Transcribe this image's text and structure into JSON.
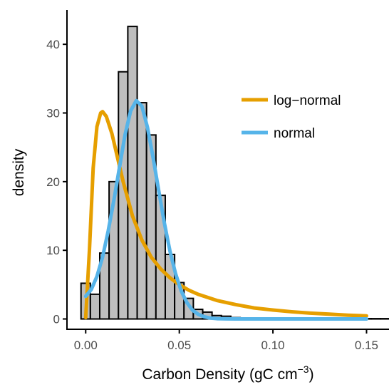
{
  "chart_data": {
    "type": "histogram",
    "xlabel": "Carbon Density (gC cm",
    "xlabel_superscript": "−3",
    "xlabel_suffix": ")",
    "ylabel": "density",
    "xlim": [
      -0.01,
      0.162
    ],
    "ylim": [
      -1.5,
      45
    ],
    "x_ticks": [
      0.0,
      0.05,
      0.1,
      0.15
    ],
    "x_tick_labels": [
      "0.00",
      "0.05",
      "0.10",
      "0.15"
    ],
    "y_ticks": [
      0,
      10,
      20,
      30,
      40
    ],
    "y_tick_labels": [
      "0",
      "10",
      "20",
      "30",
      "40"
    ],
    "grid": false,
    "legend_position": "top-right",
    "histogram": {
      "bin_width": 0.005,
      "bin_starts": [
        -0.0025,
        0.0025,
        0.0075,
        0.0125,
        0.0175,
        0.0225,
        0.0275,
        0.0325,
        0.0375,
        0.0425,
        0.0475,
        0.0525,
        0.0575,
        0.0625,
        0.0675,
        0.0725,
        0.0775,
        0.0825,
        0.0875,
        0.0925,
        0.0975,
        0.1025,
        0.1075,
        0.1125,
        0.1175,
        0.1225,
        0.1275,
        0.1325,
        0.1375,
        0.1425,
        0.1475,
        0.1525,
        0.1575
      ],
      "densities": [
        5.2,
        3.6,
        9.6,
        20.0,
        36.0,
        42.6,
        31.5,
        26.8,
        18.0,
        9.4,
        5.3,
        3.0,
        1.4,
        1.0,
        0.5,
        0.4,
        0.2,
        0.15,
        0.1,
        0.1,
        0.05,
        0.05,
        0.05,
        0.05,
        0.05,
        0.05,
        0.05,
        0.05,
        0.05,
        0.05,
        0.05,
        0.05,
        0.05
      ],
      "fill": "#bebebe",
      "stroke": "#000000"
    },
    "series": [
      {
        "name": "log−normal",
        "color": "#E69F00",
        "x": [
          0.0,
          0.002,
          0.004,
          0.006,
          0.008,
          0.009,
          0.011,
          0.014,
          0.017,
          0.02,
          0.025,
          0.03,
          0.035,
          0.04,
          0.045,
          0.05,
          0.055,
          0.06,
          0.07,
          0.08,
          0.09,
          0.1,
          0.11,
          0.12,
          0.13,
          0.14,
          0.15
        ],
        "y": [
          0.2,
          10.0,
          22.0,
          28.0,
          30.0,
          30.2,
          29.5,
          27.0,
          23.5,
          20.0,
          15.0,
          11.5,
          9.0,
          7.3,
          6.0,
          5.0,
          4.2,
          3.6,
          2.7,
          2.1,
          1.6,
          1.3,
          1.05,
          0.85,
          0.7,
          0.55,
          0.45
        ]
      },
      {
        "name": "normal",
        "color": "#56B4E9",
        "x": [
          0.0,
          0.003,
          0.006,
          0.009,
          0.012,
          0.015,
          0.018,
          0.021,
          0.024,
          0.027,
          0.03,
          0.033,
          0.036,
          0.039,
          0.042,
          0.045,
          0.048,
          0.051,
          0.054,
          0.057,
          0.06,
          0.063,
          0.066,
          0.07,
          0.075,
          0.08,
          0.1,
          0.12,
          0.15
        ],
        "y": [
          3.3,
          4.3,
          6.2,
          9.0,
          12.8,
          17.2,
          22.0,
          26.8,
          30.3,
          31.8,
          31.0,
          27.9,
          23.5,
          18.7,
          14.0,
          9.9,
          6.6,
          4.1,
          2.4,
          1.3,
          0.7,
          0.35,
          0.15,
          0.05,
          0.02,
          0.0,
          0.0,
          0.0,
          0.0
        ]
      }
    ]
  }
}
